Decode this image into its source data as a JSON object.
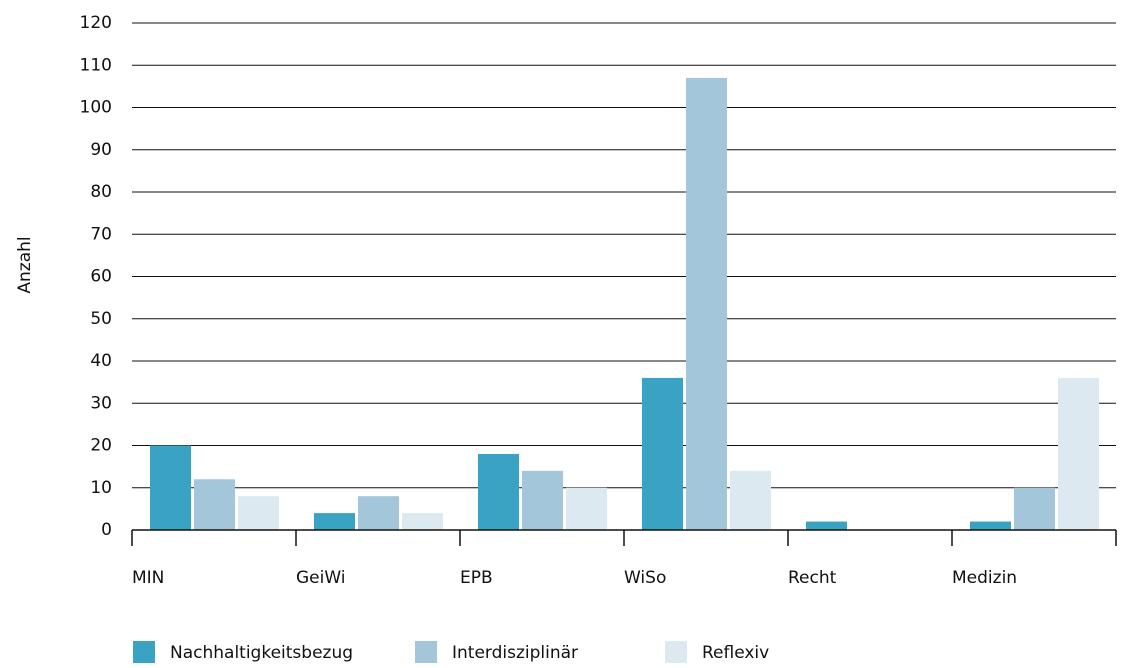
{
  "chart_data": {
    "type": "bar",
    "y_label": "Anzahl",
    "categories": [
      "MIN",
      "GeiWi",
      "EPB",
      "WiSo",
      "Recht",
      "Medizin"
    ],
    "series": [
      {
        "name": "Nachhaltigkeitsbezug",
        "color": "#3aa3c4",
        "values": [
          20,
          4,
          18,
          36,
          2,
          2
        ]
      },
      {
        "name": "Interdisziplinär",
        "color": "#a3c6da",
        "values": [
          12,
          8,
          14,
          107,
          0,
          10
        ]
      },
      {
        "name": "Reflexiv",
        "color": "#dde9f0",
        "values": [
          8,
          4,
          10,
          14,
          0,
          36
        ]
      }
    ],
    "ylim": [
      0,
      120
    ],
    "yticks": [
      0,
      10,
      20,
      30,
      40,
      50,
      60,
      70,
      80,
      90,
      100,
      110,
      120
    ],
    "grid": true,
    "legend": "bottom"
  }
}
